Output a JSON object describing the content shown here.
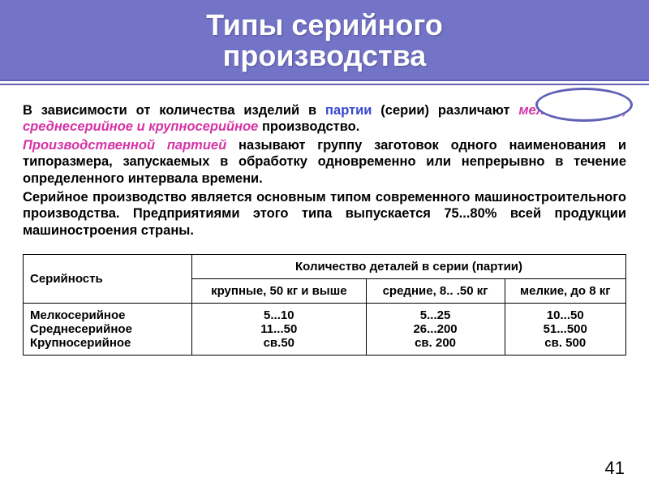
{
  "header": {
    "title_line1": "Типы серийного",
    "title_line2": "производства"
  },
  "paragraphs": {
    "p1_a": "В зависимости от количества изделий в ",
    "p1_b_blue": "партии",
    "p1_c": " (серии) различают ",
    "p1_d_mag": "мелкосерийное, среднесерийное и крупносерийное",
    "p1_e": " производство.",
    "p2_a_mag": "Производственной партией",
    "p2_b": " называют группу заготовок одного наименования и типоразмера, запускаемых в обработку одновременно или непрерывно в течение определенного интервала времени.",
    "p3": "Серийное производство является основным типом современного машиностроительного производства. Предприятиями этого типа выпускается 75...80% всей продукции машиностроения страны."
  },
  "table": {
    "hdr_left": "Серийность",
    "hdr_right": "Количество деталей в серии (партии)",
    "sub1": "крупные, 50 кг и выше",
    "sub2": "средние, 8.. .50 кг",
    "sub3": "мелкие, до 8 кг",
    "r1": "Мелкосерийное",
    "r2": "Среднесерийное",
    "r3": "Крупносерийное",
    "c11": "5...10",
    "c12": "5...25",
    "c13": "10...50",
    "c21": "11...50",
    "c22": "26...200",
    "c23": "51...500",
    "c31": "св.50",
    "c32": "св. 200",
    "c33": "св. 500"
  },
  "page_number": "41",
  "colors": {
    "band": "#7373c8",
    "line": "#6060b8",
    "blue_text": "#3949d0",
    "magenta_text": "#d633a6"
  }
}
